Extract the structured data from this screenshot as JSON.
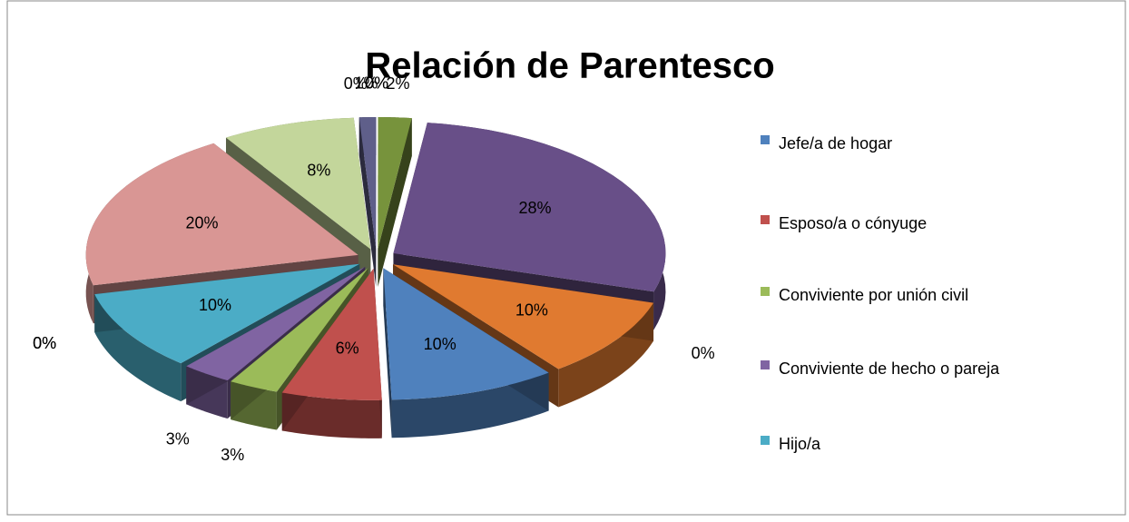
{
  "chart_data": {
    "type": "pie",
    "title": "Relación de Parentesco",
    "categories": [
      "Jefe/a de hogar",
      "Esposo/a o cónyuge",
      "Conviviente por unión civil",
      "Conviviente de hecho o pareja",
      "Hijo/a",
      null,
      null,
      null,
      null,
      null,
      null,
      null,
      null,
      null,
      null,
      null,
      null
    ],
    "values": [
      10,
      6,
      3,
      3,
      10,
      0,
      0,
      20,
      8,
      0,
      1,
      0,
      0,
      2,
      28,
      0,
      10
    ],
    "value_labels": [
      "10%",
      "6%",
      "3%",
      "3%",
      "10%",
      "0%",
      "0%",
      "20%",
      "8%",
      "0%",
      "1%",
      "0%",
      "0%",
      "2%",
      "28%",
      "0%",
      "10%"
    ],
    "colors": [
      "#4f81bd",
      "#c0504d",
      "#9bbb59",
      "#8064a2",
      "#4bacc6",
      "#f79646",
      "#2c4d75",
      "#d99694",
      "#c3d69b",
      "#b3a2c7",
      "#5f5f8a",
      "#93cddd",
      "#b7dee8",
      "#77933c",
      "#684f88",
      "#215968",
      "#e07a30"
    ],
    "legend": "right"
  }
}
